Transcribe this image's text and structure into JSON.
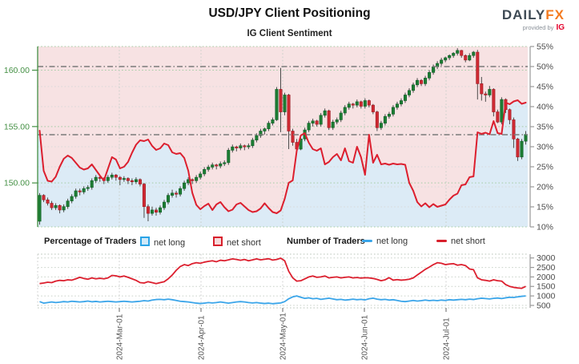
{
  "header": {
    "title": "USD/JPY Client Positioning",
    "subtitle": "IG Client Sentiment",
    "brand": {
      "part1": "DAILY",
      "part2": "FX",
      "provided_by": "provided by",
      "provider": "IG"
    }
  },
  "legend": {
    "pct_group_label": "Percentage of Traders",
    "num_group_label": "Number of Traders",
    "pct_net_long_label": "net long",
    "pct_net_short_label": "net short",
    "num_net_long_label": "net long",
    "num_net_short_label": "net short"
  },
  "colors": {
    "net_short_line": "#dc1f2e",
    "net_long_line": "#3aa5e9",
    "short_fill_bg": "#f7e2e3",
    "long_fill_bg": "#dcebf6",
    "candle_up": "#1d7d33",
    "candle_up_edge": "#0f5f27",
    "candle_down": "#cf2a33",
    "candle_down_edge": "#9e1a22",
    "price_axis_green": "#449044",
    "pct_axis_gray": "#4a4a4a",
    "grid_green": "#a6cda6",
    "grid_gray": "#d9d9d9",
    "grid_month": "#c8cfc8",
    "ref_dashdot": "#7a7a7a",
    "brand_orange": "#f47b20",
    "brand_dark": "#3e4a54",
    "ig_red": "#e4002b"
  },
  "chart_data": {
    "type": "candlestick+line, dual panel sentiment chart",
    "x_tick_labels": [
      "2024-Mar-01",
      "2024-Apr-01",
      "2024-May-01",
      "2024-Jun-01",
      "2024-Jul-01"
    ],
    "main_panel": {
      "price_axis": {
        "side": "left",
        "tick_labels": [
          "160.00",
          "155.00",
          "150.00"
        ],
        "tick_values": [
          160,
          155,
          150
        ],
        "range": [
          146.1,
          162.1
        ]
      },
      "pct_axis": {
        "side": "right",
        "tick_labels": [
          "55%",
          "50%",
          "45%",
          "40%",
          "35%",
          "30%",
          "25%",
          "20%",
          "15%",
          "10%"
        ],
        "tick_values": [
          55,
          50,
          45,
          40,
          35,
          30,
          25,
          20,
          15,
          10
        ],
        "range": [
          10,
          55
        ]
      },
      "reference_lines_pct": [
        50,
        33
      ],
      "grid_pct_values": [
        45,
        40,
        35,
        30,
        25,
        20,
        15
      ],
      "candles_ohlc": [
        [
          146.6,
          149.1,
          146.3,
          148.9
        ],
        [
          148.9,
          149.0,
          148.3,
          148.5
        ],
        [
          148.5,
          148.7,
          148.0,
          148.2
        ],
        [
          148.2,
          148.4,
          147.6,
          147.8
        ],
        [
          147.8,
          148.2,
          147.6,
          148.0
        ],
        [
          148.0,
          148.1,
          147.3,
          147.6
        ],
        [
          147.6,
          148.1,
          147.4,
          147.9
        ],
        [
          147.9,
          148.6,
          147.7,
          148.4
        ],
        [
          148.4,
          149.0,
          148.2,
          148.8
        ],
        [
          148.8,
          149.5,
          148.6,
          149.3
        ],
        [
          149.3,
          149.5,
          148.9,
          149.2
        ],
        [
          149.2,
          149.7,
          149.0,
          149.5
        ],
        [
          149.5,
          149.8,
          149.3,
          149.6
        ],
        [
          149.6,
          150.4,
          149.4,
          150.2
        ],
        [
          150.2,
          150.7,
          150.0,
          150.5
        ],
        [
          150.5,
          150.6,
          150.1,
          150.4
        ],
        [
          150.4,
          150.5,
          149.9,
          150.2
        ],
        [
          150.2,
          150.7,
          150.0,
          150.5
        ],
        [
          150.5,
          150.9,
          150.3,
          150.7
        ],
        [
          150.7,
          150.8,
          150.2,
          150.5
        ],
        [
          150.5,
          150.6,
          149.8,
          150.3
        ],
        [
          150.3,
          150.6,
          150.1,
          150.4
        ],
        [
          150.4,
          150.5,
          149.9,
          150.2
        ],
        [
          150.2,
          150.4,
          149.8,
          150.1
        ],
        [
          150.1,
          150.5,
          149.9,
          150.3
        ],
        [
          150.3,
          150.4,
          149.7,
          149.9
        ],
        [
          149.9,
          150.0,
          146.9,
          147.9
        ],
        [
          147.9,
          148.1,
          146.6,
          147.3
        ],
        [
          147.3,
          147.9,
          147.1,
          147.6
        ],
        [
          147.6,
          147.8,
          147.1,
          147.4
        ],
        [
          147.4,
          148.0,
          147.2,
          147.8
        ],
        [
          147.8,
          148.5,
          147.6,
          148.3
        ],
        [
          148.3,
          149.1,
          148.1,
          148.9
        ],
        [
          148.9,
          149.4,
          148.7,
          149.1
        ],
        [
          149.1,
          149.3,
          148.7,
          149.0
        ],
        [
          149.0,
          149.7,
          148.8,
          149.5
        ],
        [
          149.5,
          150.2,
          149.3,
          150.0
        ],
        [
          150.0,
          150.5,
          149.8,
          150.3
        ],
        [
          150.3,
          150.4,
          149.9,
          150.2
        ],
        [
          150.2,
          150.7,
          150.0,
          150.5
        ],
        [
          150.5,
          151.0,
          150.3,
          150.8
        ],
        [
          150.8,
          151.4,
          150.6,
          151.2
        ],
        [
          151.2,
          151.6,
          151.0,
          151.4
        ],
        [
          151.4,
          151.8,
          151.2,
          151.6
        ],
        [
          151.6,
          151.7,
          151.2,
          151.5
        ],
        [
          151.5,
          151.9,
          151.3,
          151.7
        ],
        [
          151.7,
          152.0,
          151.5,
          151.8
        ],
        [
          151.8,
          153.1,
          151.6,
          152.9
        ],
        [
          152.9,
          153.4,
          152.7,
          153.2
        ],
        [
          153.2,
          153.3,
          152.8,
          153.1
        ],
        [
          153.1,
          153.5,
          152.9,
          153.3
        ],
        [
          153.3,
          153.4,
          152.9,
          153.2
        ],
        [
          153.2,
          153.5,
          153.0,
          153.3
        ],
        [
          153.3,
          154.0,
          153.1,
          153.8
        ],
        [
          153.8,
          154.4,
          153.6,
          154.2
        ],
        [
          154.2,
          154.8,
          154.0,
          154.6
        ],
        [
          154.6,
          154.9,
          154.3,
          154.8
        ],
        [
          154.8,
          155.5,
          154.6,
          155.3
        ],
        [
          155.3,
          155.8,
          155.1,
          155.6
        ],
        [
          155.6,
          158.5,
          155.5,
          158.3
        ],
        [
          158.3,
          160.2,
          154.5,
          156.3
        ],
        [
          156.3,
          158.0,
          156.0,
          157.8
        ],
        [
          157.8,
          157.9,
          153.0,
          154.6
        ],
        [
          154.6,
          154.8,
          153.3,
          153.6
        ],
        [
          153.6,
          153.9,
          152.8,
          153.0
        ],
        [
          153.0,
          154.1,
          152.9,
          153.9
        ],
        [
          153.9,
          154.9,
          153.7,
          154.7
        ],
        [
          154.7,
          155.5,
          154.5,
          155.3
        ],
        [
          155.3,
          155.7,
          155.0,
          155.5
        ],
        [
          155.5,
          155.6,
          155.0,
          155.2
        ],
        [
          155.2,
          156.2,
          155.0,
          156.0
        ],
        [
          156.0,
          156.6,
          155.8,
          156.4
        ],
        [
          156.4,
          156.5,
          154.7,
          154.9
        ],
        [
          154.9,
          155.6,
          154.7,
          155.4
        ],
        [
          155.4,
          155.8,
          155.2,
          155.6
        ],
        [
          155.6,
          156.4,
          155.4,
          156.2
        ],
        [
          156.2,
          156.9,
          156.0,
          156.7
        ],
        [
          156.7,
          157.2,
          156.5,
          157.0
        ],
        [
          157.0,
          157.1,
          156.6,
          156.9
        ],
        [
          156.9,
          157.4,
          156.7,
          157.2
        ],
        [
          157.2,
          157.3,
          156.6,
          156.8
        ],
        [
          156.8,
          157.5,
          156.6,
          157.3
        ],
        [
          157.3,
          157.4,
          156.7,
          156.9
        ],
        [
          156.9,
          157.0,
          156.1,
          156.3
        ],
        [
          156.3,
          156.4,
          154.6,
          154.9
        ],
        [
          154.9,
          155.5,
          154.7,
          155.3
        ],
        [
          155.3,
          156.1,
          155.1,
          155.9
        ],
        [
          155.9,
          156.3,
          155.7,
          156.1
        ],
        [
          156.1,
          156.9,
          155.9,
          156.7
        ],
        [
          156.7,
          157.2,
          156.5,
          157.0
        ],
        [
          157.0,
          157.5,
          156.8,
          157.3
        ],
        [
          157.3,
          158.0,
          157.1,
          157.8
        ],
        [
          157.8,
          158.4,
          157.6,
          158.2
        ],
        [
          158.2,
          158.9,
          158.0,
          158.7
        ],
        [
          158.7,
          159.3,
          158.5,
          159.1
        ],
        [
          159.1,
          159.2,
          158.6,
          158.8
        ],
        [
          158.8,
          159.5,
          158.6,
          159.3
        ],
        [
          159.3,
          160.0,
          159.1,
          159.8
        ],
        [
          159.8,
          160.5,
          159.6,
          160.3
        ],
        [
          160.3,
          160.8,
          160.1,
          160.6
        ],
        [
          160.6,
          161.1,
          160.4,
          160.9
        ],
        [
          160.9,
          161.2,
          160.7,
          161.1
        ],
        [
          161.1,
          161.4,
          160.9,
          161.3
        ],
        [
          161.3,
          161.6,
          161.1,
          161.5
        ],
        [
          161.5,
          161.95,
          161.3,
          161.75
        ],
        [
          161.75,
          161.8,
          161.1,
          161.3
        ],
        [
          161.3,
          161.4,
          160.7,
          160.9
        ],
        [
          160.9,
          161.5,
          160.8,
          161.3
        ],
        [
          161.3,
          161.7,
          161.1,
          161.6
        ],
        [
          161.6,
          161.8,
          157.4,
          158.8
        ],
        [
          158.8,
          159.4,
          157.3,
          157.9
        ],
        [
          157.9,
          158.1,
          157.2,
          157.8
        ],
        [
          157.8,
          158.6,
          157.6,
          158.3
        ],
        [
          158.3,
          158.4,
          155.9,
          156.3
        ],
        [
          156.3,
          156.5,
          155.3,
          155.4
        ],
        [
          155.4,
          157.6,
          155.2,
          157.4
        ],
        [
          157.4,
          157.5,
          156.2,
          156.5
        ],
        [
          156.5,
          156.6,
          155.2,
          155.6
        ],
        [
          155.6,
          155.8,
          153.1,
          153.9
        ],
        [
          153.9,
          154.0,
          151.95,
          152.3
        ],
        [
          152.3,
          153.9,
          152.1,
          153.7
        ],
        [
          153.7,
          154.6,
          153.4,
          154.3
        ]
      ],
      "pct_net_short": [
        34,
        24,
        21.5,
        21.3,
        22.5,
        25,
        27,
        27.8,
        27.2,
        26,
        24.8,
        24.3,
        24.6,
        25.6,
        24.2,
        22.8,
        21.6,
        24.5,
        27.4,
        26.8,
        24.6,
        25,
        26.2,
        28.5,
        30.5,
        31.6,
        31.4,
        31.8,
        30.2,
        29.2,
        29.6,
        30.8,
        30.4,
        28.6,
        28.2,
        28.4,
        27.2,
        24,
        18.5,
        15.5,
        14.4,
        15.2,
        15.8,
        14.2,
        15.6,
        16.2,
        14.9,
        13.9,
        14.3,
        15.6,
        16,
        15.1,
        14.2,
        13.7,
        13.9,
        14.6,
        15.9,
        14.7,
        13.7,
        13.4,
        14.1,
        17,
        21,
        21.6,
        29,
        32.8,
        33.4,
        31,
        29.4,
        29,
        29.6,
        25.6,
        26.2,
        27.4,
        28.2,
        26.6,
        29.6,
        26.4,
        26,
        30,
        27.4,
        23,
        33,
        26,
        28,
        25.6,
        25.8,
        25.5,
        25.8,
        25.6,
        25.7,
        25.5,
        21,
        19,
        16.2,
        15.1,
        15.9,
        14.9,
        15.7,
        15,
        15.3,
        15.6,
        16.8,
        17.8,
        18.3,
        20.4,
        20.6,
        22.4,
        22.6,
        33.6,
        33.2,
        33.5,
        33.1,
        36.4,
        33.4,
        33.2,
        41,
        40.6,
        41.3,
        41.6,
        40.7,
        41
      ]
    },
    "bottom_panel": {
      "count_axis": {
        "side": "right",
        "tick_labels": [
          "3000",
          "2500",
          "2000",
          "1500",
          "1000",
          "500"
        ],
        "tick_values": [
          3000,
          2500,
          2000,
          1500,
          1000,
          500
        ],
        "range": [
          370,
          3200
        ]
      },
      "traders_net_short": [
        1650,
        1680,
        1720,
        1700,
        1780,
        1820,
        1800,
        1850,
        1830,
        1900,
        1980,
        1920,
        1880,
        1950,
        1900,
        1930,
        1900,
        1950,
        2080,
        2060,
        2000,
        2050,
        1980,
        1900,
        1820,
        1700,
        1680,
        1750,
        1700,
        1650,
        1700,
        1750,
        1900,
        2100,
        2350,
        2550,
        2650,
        2600,
        2700,
        2750,
        2720,
        2780,
        2820,
        2850,
        2800,
        2880,
        2850,
        2900,
        2950,
        2920,
        2880,
        2920,
        2850,
        2900,
        2950,
        2900,
        2930,
        2960,
        2890,
        2920,
        2990,
        2850,
        2300,
        1950,
        1780,
        1800,
        1900,
        2000,
        2050,
        1980,
        2000,
        2050,
        1950,
        1980,
        2000,
        1950,
        1980,
        2000,
        1950,
        1970,
        1940,
        1960,
        1950,
        1920,
        1870,
        1800,
        1850,
        1960,
        1830,
        1860,
        1830,
        1850,
        1880,
        1950,
        2100,
        2250,
        2400,
        2520,
        2650,
        2750,
        2720,
        2650,
        2680,
        2700,
        2620,
        2650,
        2600,
        2420,
        2380,
        1950,
        1850,
        1820,
        1780,
        1850,
        1800,
        1780,
        1600,
        1500,
        1450,
        1420,
        1400,
        1500
      ],
      "traders_net_long": [
        700,
        620,
        650,
        680,
        650,
        670,
        700,
        680,
        720,
        700,
        680,
        700,
        730,
        690,
        710,
        680,
        700,
        720,
        700,
        680,
        700,
        720,
        700,
        680,
        700,
        720,
        750,
        730,
        780,
        810,
        820,
        800,
        830,
        800,
        760,
        720,
        700,
        680,
        650,
        620,
        600,
        620,
        650,
        630,
        650,
        680,
        650,
        620,
        650,
        680,
        700,
        680,
        650,
        630,
        650,
        620,
        600,
        620,
        590,
        610,
        630,
        700,
        850,
        950,
        1000,
        930,
        870,
        900,
        850,
        870,
        820,
        850,
        880,
        840,
        800,
        820,
        780,
        800,
        830,
        800,
        820,
        790,
        850,
        880,
        830,
        800,
        820,
        780,
        800,
        760,
        720,
        700,
        730,
        760,
        730,
        750,
        780,
        750,
        770,
        750,
        780,
        760,
        800,
        780,
        800,
        820,
        800,
        830,
        810,
        850,
        880,
        860,
        840,
        870,
        890,
        860,
        900,
        930,
        920,
        950,
        980,
        1000
      ]
    }
  }
}
